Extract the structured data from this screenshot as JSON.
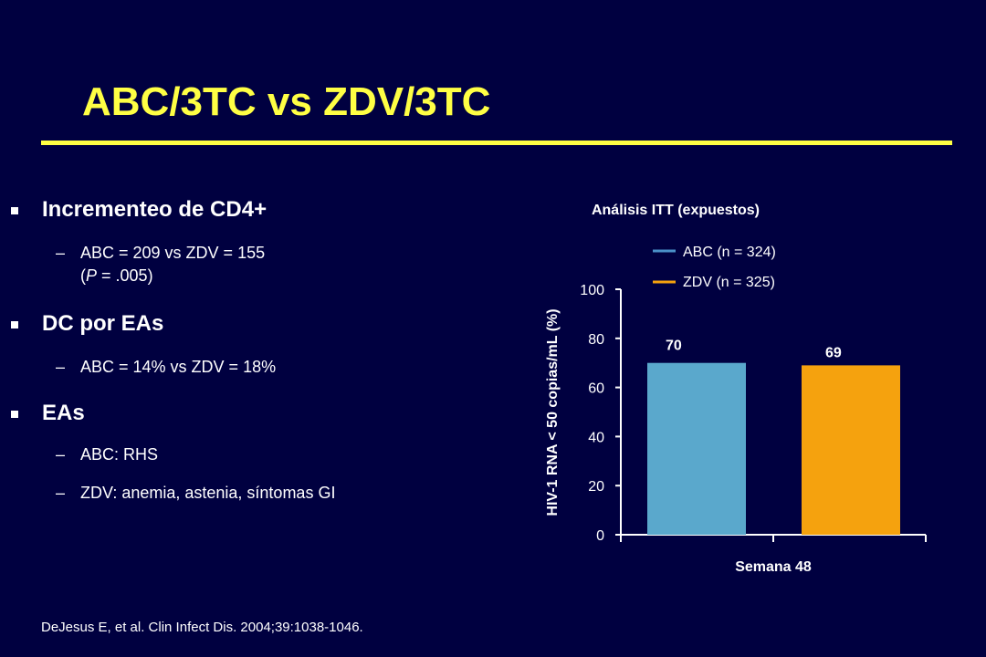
{
  "slide": {
    "title": "ABC/3TC vs ZDV/3TC",
    "accent_color": "#ffff44",
    "background_color": "#000040"
  },
  "bullets": [
    {
      "heading": "Incrementeo de CD4+",
      "subitems": [
        {
          "dash": "–",
          "lines": [
            "ABC = 209 vs ZDV = 155",
            "(P = .005)"
          ]
        }
      ]
    },
    {
      "heading": "DC por EAs",
      "subitems": [
        {
          "dash": "–",
          "lines": [
            "ABC = 14% vs ZDV = 18%"
          ]
        }
      ]
    },
    {
      "heading": "EAs",
      "subitems": [
        {
          "dash": "–",
          "lines": [
            "ABC: RHS"
          ]
        },
        {
          "dash": "–",
          "lines": [
            "ZDV: anemia, astenia, síntomas GI"
          ]
        }
      ]
    }
  ],
  "citation": "DeJesus E, et al. Clin Infect Dis. 2004;39:1038-1046.",
  "chart_data": {
    "type": "bar",
    "title": "Análisis ITT (expuestos)",
    "xlabel": "Semana 48",
    "ylabel": "HIV-1 RNA < 50 copias/mL (%)",
    "ylim": [
      0,
      100
    ],
    "yticks": [
      0,
      20,
      40,
      60,
      80,
      100
    ],
    "categories": [
      "Semana 48"
    ],
    "series": [
      {
        "name": "ABC (n = 324)",
        "color": "#5aa8cc",
        "legend_color": "#4a90c8",
        "values": [
          70
        ],
        "label": "70"
      },
      {
        "name": "ZDV (n = 325)",
        "color": "#f5a20e",
        "legend_color": "#f5a20e",
        "values": [
          69
        ],
        "label": "69"
      }
    ],
    "legend_position": "top-right",
    "grid": false
  }
}
